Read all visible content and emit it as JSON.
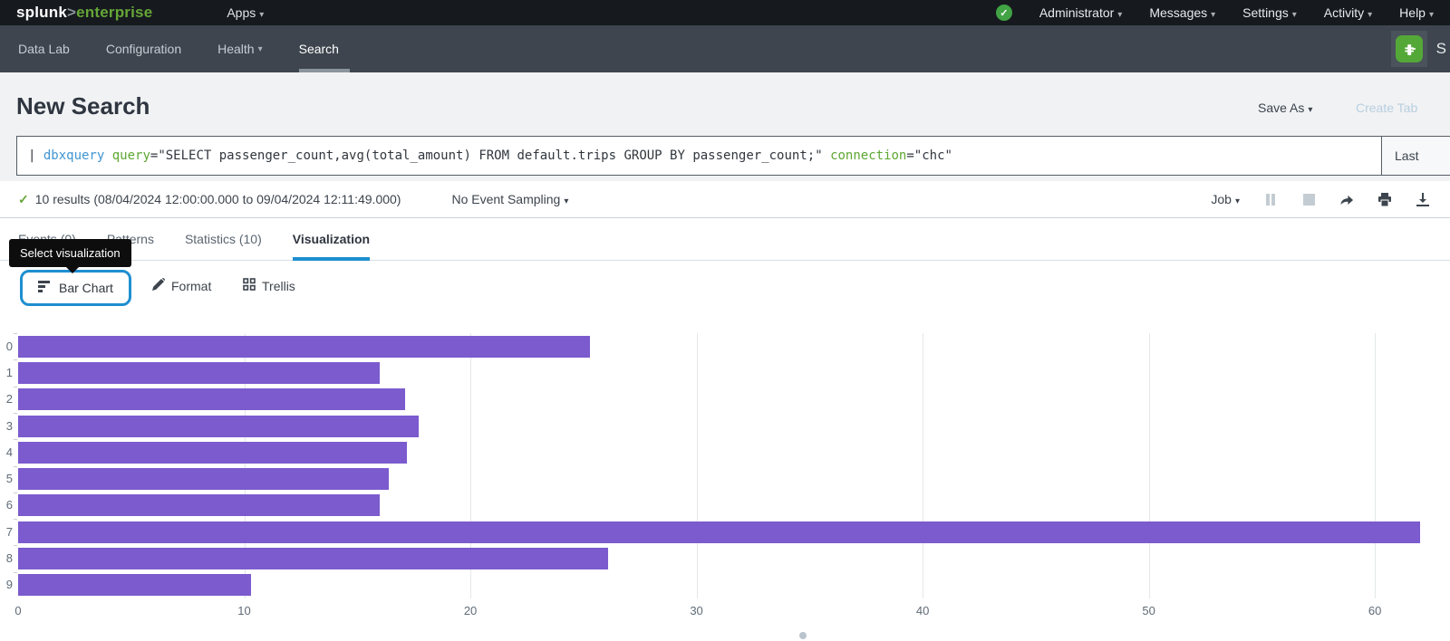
{
  "topbar": {
    "logo_splunk": "splunk",
    "logo_gt": ">",
    "logo_product": "enterprise",
    "apps_label": "Apps",
    "items": [
      {
        "label": "Administrator"
      },
      {
        "label": "Messages"
      },
      {
        "label": "Settings"
      },
      {
        "label": "Activity"
      },
      {
        "label": "Help"
      }
    ],
    "status_check": "✓"
  },
  "appnav": {
    "items": [
      {
        "label": "Data Lab"
      },
      {
        "label": "Configuration"
      },
      {
        "label": "Health",
        "caret": true
      },
      {
        "label": "Search",
        "active": true
      }
    ],
    "app_initial": "S"
  },
  "header": {
    "title": "New Search",
    "save_as_label": "Save As",
    "create_tab_label": "Create Tab"
  },
  "search": {
    "pipe": "| ",
    "command": "dbxquery",
    "arg1_key": "query",
    "arg1_value": "=\"SELECT passenger_count,avg(total_amount) FROM default.trips GROUP BY passenger_count;\"",
    "arg2_key": "connection",
    "arg2_value": "=\"chc\"",
    "time_range_label": "Last"
  },
  "results": {
    "check": "✓",
    "status_text": "10 results (08/04/2024 12:00:00.000 to 09/04/2024 12:11:49.000)",
    "sampling_label": "No Event Sampling",
    "job_label": "Job"
  },
  "tabs": {
    "events": "Events (0)",
    "patterns": "Patterns",
    "statistics": "Statistics (10)",
    "visualization": "Visualization"
  },
  "tooltip": {
    "text": "Select visualization"
  },
  "viz_controls": {
    "chart_type_label": "Bar Chart",
    "format_label": "Format",
    "trellis_label": "Trellis"
  },
  "chart_data": {
    "type": "bar",
    "orientation": "horizontal",
    "title": "",
    "xlabel": "",
    "ylabel": "",
    "categories": [
      "0",
      "1",
      "2",
      "3",
      "4",
      "5",
      "6",
      "7",
      "8",
      "9"
    ],
    "values": [
      25.3,
      16.0,
      17.1,
      17.7,
      17.2,
      16.4,
      16.0,
      62.0,
      26.1,
      10.3
    ],
    "x_ticks": [
      0,
      10,
      20,
      30,
      40,
      50,
      60
    ],
    "xlim": [
      0,
      63
    ],
    "grid": true,
    "legend": false,
    "bar_color": "#7b5bce"
  },
  "colors": {
    "accent_blue": "#1e8fd0",
    "splunk_green": "#65a637",
    "bar_purple": "#7b5bce",
    "topbar_bg": "#16191e",
    "appnav_bg": "#3e454e"
  }
}
